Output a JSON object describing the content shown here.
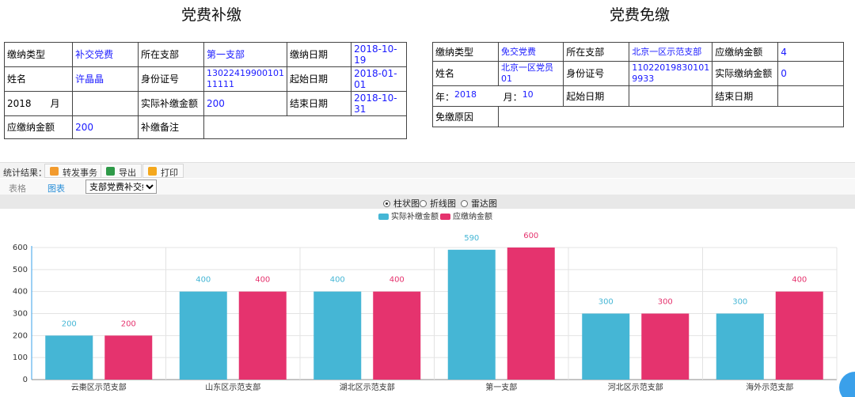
{
  "left_section": {
    "title": "党费补缴",
    "r1": {
      "type_label": "缴纳类型",
      "type_value": "补交党费",
      "branch_label": "所在支部",
      "branch_value": "第一支部",
      "pay_date_label": "缴纳日期",
      "pay_date_value": "2018-10-19"
    },
    "r2": {
      "name_label": "姓名",
      "name_value": "许晶晶",
      "id_label": "身份证号",
      "id_value": "13022419900101 11111",
      "start_label": "起始日期",
      "start_value": "2018-01-01"
    },
    "r3": {
      "year_month": "2018　　月",
      "actual_label": "实际补缴金额",
      "actual_value": "200",
      "end_label": "结束日期",
      "end_value": "2018-10-31"
    },
    "r4": {
      "due_label": "应缴纳金额",
      "due_value": "200",
      "note_label": "补缴备注"
    }
  },
  "right_section": {
    "title": "党费免缴",
    "r1": {
      "type_label": "缴纳类型",
      "type_value": "免交党费",
      "branch_label": "所在支部",
      "branch_value": "北京一区示范支部",
      "due_label": "应缴纳金额",
      "due_value": "4"
    },
    "r2": {
      "name_label": "姓名",
      "name_value": "北京一区党员01",
      "id_label": "身份证号",
      "id_value": "11022019830101 9933",
      "actual_label": "实际缴纳金额",
      "actual_value": "0"
    },
    "r3": {
      "year_label": "年：",
      "year_value": "2018",
      "month_label": "月：",
      "month_value": "10",
      "start_label": "起始日期",
      "end_label": "结束日期"
    },
    "r4": {
      "reason_label": "免缴原因"
    }
  },
  "toolbar": {
    "label": "统计结果：",
    "forward": "转发事务",
    "export": "导出",
    "print": "打印"
  },
  "tabs": {
    "table": "表格",
    "chart": "图表",
    "report": "支部党费补交统计"
  },
  "chart_options": {
    "bar": "柱状图",
    "line": "折线图",
    "radar": "雷达图",
    "selected": "柱状图"
  },
  "colors": {
    "actual": "#45b6d5",
    "due": "#e5336e"
  },
  "chart_data": {
    "type": "bar",
    "categories": [
      "云棗区示范支部",
      "山东区示范支部",
      "湖北区示范支部",
      "第一支部",
      "河北区示范支部",
      "海外示范支部"
    ],
    "series": [
      {
        "name": "实际补缴金额",
        "values": [
          200,
          400,
          400,
          590,
          300,
          300
        ]
      },
      {
        "name": "应缴纳金额",
        "values": [
          200,
          400,
          400,
          600,
          300,
          400
        ]
      }
    ],
    "ylim": [
      0,
      600
    ],
    "yticks": [
      0,
      100,
      200,
      300,
      400,
      500,
      600
    ],
    "grid": true,
    "legend": "top-center",
    "data_labels": true
  }
}
